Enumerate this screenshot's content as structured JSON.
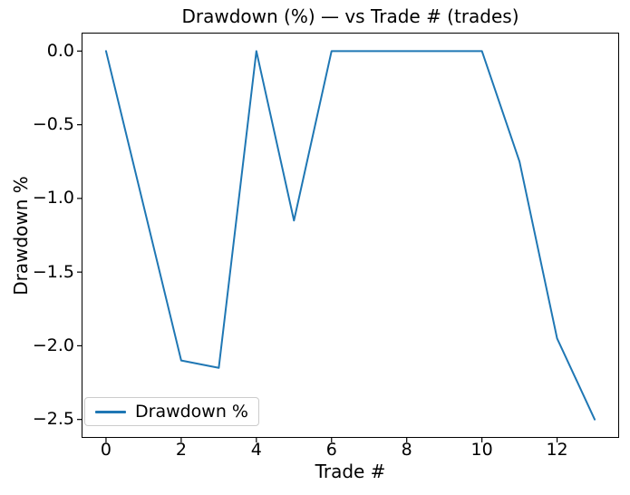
{
  "chart_data": {
    "type": "line",
    "title": "Drawdown (%) — vs Trade # (trades)",
    "xlabel": "Trade #",
    "ylabel": "Drawdown %",
    "x": [
      0,
      1,
      2,
      3,
      4,
      5,
      6,
      7,
      8,
      9,
      10,
      11,
      12,
      13
    ],
    "series": [
      {
        "name": "Drawdown %",
        "color": "#1f77b4",
        "values": [
          0.0,
          -1.05,
          -2.1,
          -2.15,
          0.0,
          -1.15,
          0.0,
          0.0,
          0.0,
          0.0,
          0.0,
          -0.75,
          -1.95,
          -2.5
        ]
      }
    ],
    "xlim": [
      -0.65,
      13.65
    ],
    "ylim": [
      -2.625,
      0.125
    ],
    "xticks": [
      0,
      2,
      4,
      6,
      8,
      10,
      12
    ],
    "xtick_labels": [
      "0",
      "2",
      "4",
      "6",
      "8",
      "10",
      "12"
    ],
    "yticks": [
      0.0,
      -0.5,
      -1.0,
      -1.5,
      -2.0,
      -2.5
    ],
    "ytick_labels": [
      "0.0",
      "−0.5",
      "−1.0",
      "−1.5",
      "−2.0",
      "−2.5"
    ],
    "grid": false,
    "background": "#ffffff",
    "spine_color": "#000000",
    "legend": {
      "position": "lower left",
      "entries": [
        {
          "label": "Drawdown %",
          "color": "#1f77b4"
        }
      ]
    }
  }
}
